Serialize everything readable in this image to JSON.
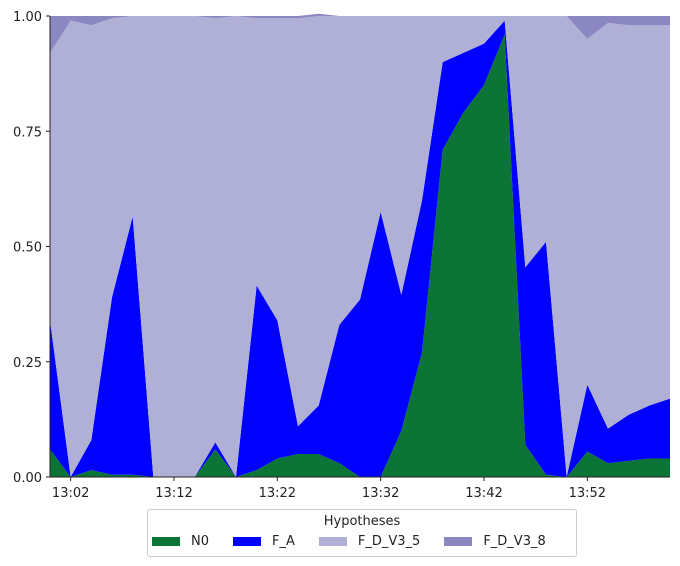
{
  "chart_data": {
    "type": "area",
    "stacked": true,
    "normalized": true,
    "x_tick_labels": [
      "13:02",
      "13:12",
      "13:22",
      "13:32",
      "13:42",
      "13:52"
    ],
    "y_tick_labels": [
      "0.00",
      "0.25",
      "0.50",
      "0.75",
      "1.00"
    ],
    "ylim": [
      0,
      1
    ],
    "grid": false,
    "legend": {
      "title": "Hypotheses",
      "placement": "bottom-center"
    },
    "x": [
      "13:00",
      "13:02",
      "13:04",
      "13:06",
      "13:08",
      "13:10",
      "13:12",
      "13:14",
      "13:16",
      "13:18",
      "13:20",
      "13:22",
      "13:24",
      "13:26",
      "13:28",
      "13:30",
      "13:32",
      "13:34",
      "13:36",
      "13:38",
      "13:40",
      "13:42",
      "13:44",
      "13:46",
      "13:48",
      "13:50",
      "13:52",
      "13:54",
      "13:56",
      "13:58",
      "14:00"
    ],
    "series": [
      {
        "name": "N0",
        "color": "#0d7437",
        "values": [
          0.06,
          0,
          0.015,
          0.005,
          0.005,
          0,
          0,
          0,
          0.06,
          0,
          0.015,
          0.04,
          0.05,
          0.05,
          0.03,
          0,
          0,
          0.1,
          0.27,
          0.71,
          0.79,
          0.85,
          0.96,
          0.07,
          0.005,
          0,
          0.055,
          0.03,
          0.035,
          0.04,
          0.04
        ]
      },
      {
        "name": "F_A",
        "color": "#0000ff",
        "values": [
          0.28,
          0,
          0.065,
          0.385,
          0.56,
          0,
          0,
          0,
          0.015,
          0,
          0.4,
          0.3,
          0.06,
          0.105,
          0.3,
          0.385,
          0.575,
          0.295,
          0.33,
          0.19,
          0.13,
          0.09,
          0.03,
          0.385,
          0.505,
          0,
          0.145,
          0.075,
          0.1,
          0.115,
          0.13
        ]
      },
      {
        "name": "F_D_V3_5",
        "color": "#b0b0d7",
        "values": [
          0.58,
          0.99,
          0.9,
          0.605,
          0.435,
          1,
          1,
          1,
          0.92,
          1,
          0.58,
          0.655,
          0.885,
          0.845,
          0.67,
          0.615,
          0.425,
          0.605,
          0.4,
          0.1,
          0.08,
          0.06,
          0.01,
          0.545,
          0.49,
          1,
          0.75,
          0.88,
          0.845,
          0.825,
          0.81
        ]
      },
      {
        "name": "F_D_V3_8",
        "color": "#8b88c1",
        "values": [
          0.08,
          0.01,
          0.02,
          0.005,
          0,
          0,
          0,
          0,
          0.005,
          0,
          0.005,
          0.005,
          0.005,
          0.005,
          0,
          0,
          0,
          0,
          0,
          0,
          0,
          0,
          0,
          0,
          0,
          0,
          0.05,
          0.015,
          0.02,
          0.02,
          0.02
        ]
      }
    ]
  }
}
